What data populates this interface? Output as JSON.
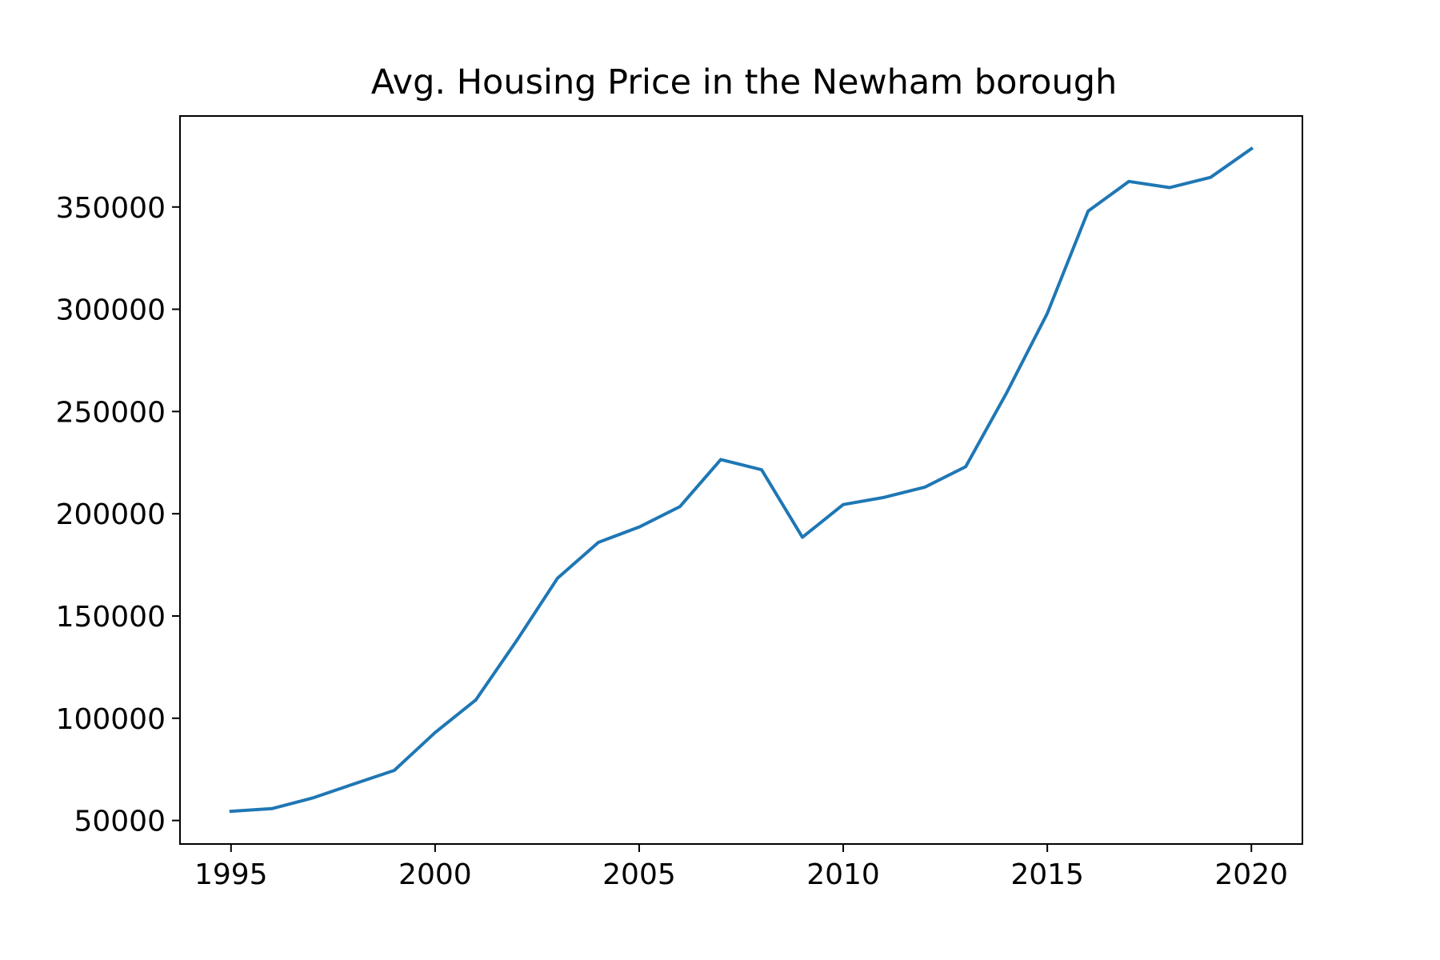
{
  "chart_data": {
    "type": "line",
    "title": "Avg. Housing Price in the Newham borough",
    "xlabel": "",
    "ylabel": "",
    "x": [
      1995,
      1996,
      1997,
      1998,
      1999,
      2000,
      2001,
      2002,
      2003,
      2004,
      2005,
      2006,
      2007,
      2008,
      2009,
      2010,
      2011,
      2012,
      2013,
      2014,
      2015,
      2016,
      2017,
      2018,
      2019,
      2020
    ],
    "series": [
      {
        "values": [
          54500,
          55800,
          61000,
          67800,
          74500,
          93000,
          109000,
          138000,
          168500,
          186000,
          193500,
          203500,
          226500,
          221500,
          188500,
          204500,
          208000,
          213000,
          223000,
          259000,
          298000,
          348000,
          362500,
          359500,
          364500,
          378500
        ],
        "color": "#1f77b4"
      }
    ],
    "xlim": [
      1993.75,
      2021.25
    ],
    "ylim": [
      38500,
      394500
    ],
    "xticks": [
      1995,
      2000,
      2005,
      2010,
      2015,
      2020
    ],
    "yticks": [
      50000,
      100000,
      150000,
      200000,
      250000,
      300000,
      350000
    ],
    "grid": false,
    "legend": "none"
  }
}
